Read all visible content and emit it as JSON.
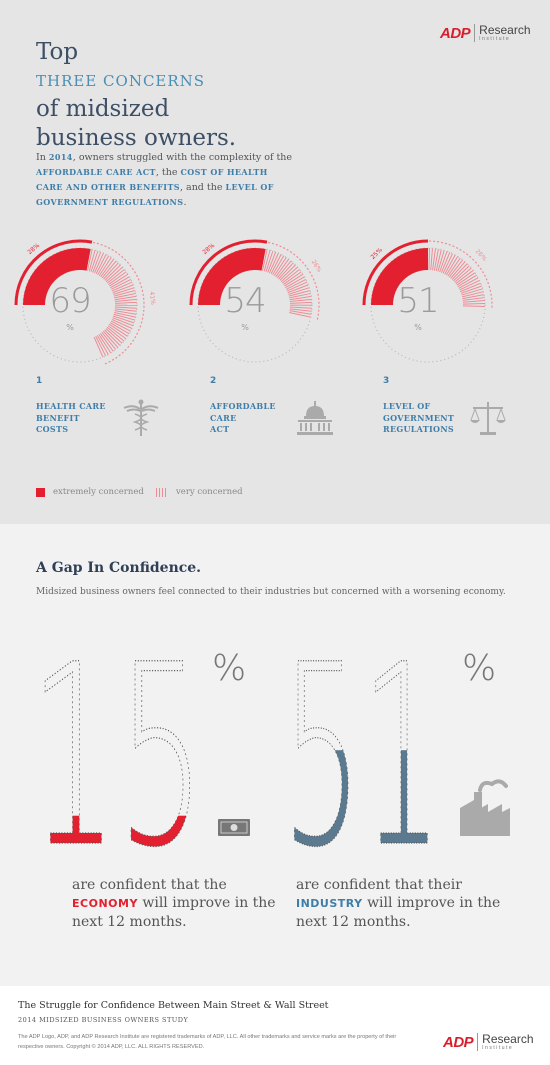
{
  "brand": {
    "mark": "ADP",
    "name": "Research",
    "tag": "Institute"
  },
  "header": {
    "line1": "Top",
    "line2": "THREE CONCERNS",
    "line3": "of midsized",
    "line4": "business owners."
  },
  "intro": {
    "p1": "In ",
    "year": "2014",
    "p2": ", owners struggled with the complexity of the ",
    "k1": "AFFORDABLE CARE ACT",
    "p3": ", the ",
    "k2": "COST OF HEALTH CARE AND OTHER BENEFITS",
    "p4": ", and the ",
    "k3": "LEVEL OF GOVERNMENT REGULATIONS",
    "p5": "."
  },
  "chart_data": [
    {
      "type": "pie",
      "value_total": "69",
      "unit": "%",
      "series": [
        {
          "name": "extremely concerned",
          "value": 28,
          "label": "28%"
        },
        {
          "name": "very concerned",
          "value": 41,
          "label": "41%"
        }
      ]
    },
    {
      "type": "pie",
      "value_total": "54",
      "unit": "%",
      "series": [
        {
          "name": "extremely concerned",
          "value": 28,
          "label": "28%"
        },
        {
          "name": "very concerned",
          "value": 26,
          "label": "26%"
        }
      ]
    },
    {
      "type": "pie",
      "value_total": "51",
      "unit": "%",
      "series": [
        {
          "name": "extremely concerned",
          "value": 25,
          "label": "25%"
        },
        {
          "name": "very concerned",
          "value": 26,
          "label": "26%"
        }
      ]
    }
  ],
  "concerns": [
    {
      "number": "1",
      "label_l1": "HEALTH CARE",
      "label_l2": "BENEFIT",
      "label_l3": "COSTS",
      "icon": "caduceus-icon"
    },
    {
      "number": "2",
      "label_l1": "AFFORDABLE",
      "label_l2": "CARE",
      "label_l3": "ACT",
      "icon": "capitol-icon"
    },
    {
      "number": "3",
      "label_l1": "LEVEL OF",
      "label_l2": "GOVERNMENT",
      "label_l3": "REGULATIONS",
      "icon": "scales-icon"
    }
  ],
  "legend": {
    "extreme": "extremely concerned",
    "very": "very concerned"
  },
  "gap": {
    "title": "A Gap In Confidence.",
    "subtitle": "Midsized business owners feel connected to their industries but concerned with a worsening economy.",
    "stats": [
      {
        "digits": "15",
        "percent_sign": "%",
        "value": 15,
        "color": "#e3202f",
        "icon": "money-icon",
        "pre": "are confident that the ",
        "keyword": "ECONOMY",
        "post": " will improve in the next 12 months."
      },
      {
        "digits": "51",
        "percent_sign": "%",
        "value": 51,
        "color": "#5b7a90",
        "icon": "factory-icon",
        "pre": "are confident that their ",
        "keyword": "INDUSTRY",
        "post": " will improve in the next 12 months."
      }
    ]
  },
  "footer": {
    "title": "The Struggle for Confidence Between Main Street & Wall Street",
    "study": "2014 MIDSIZED BUSINESS OWNERS STUDY",
    "legal": "The ADP Logo, ADP, and ADP Research Institute are registered trademarks of ADP, LLC.  All other trademarks and service marks are the property of their respective owners. Copyright © 2014 ADP, LLC. ALL RIGHTS RESERVED."
  },
  "colors": {
    "red": "#e3202f",
    "pink": "#ed8c93",
    "blue": "#3f7ea8",
    "slate": "#5b7a90"
  }
}
